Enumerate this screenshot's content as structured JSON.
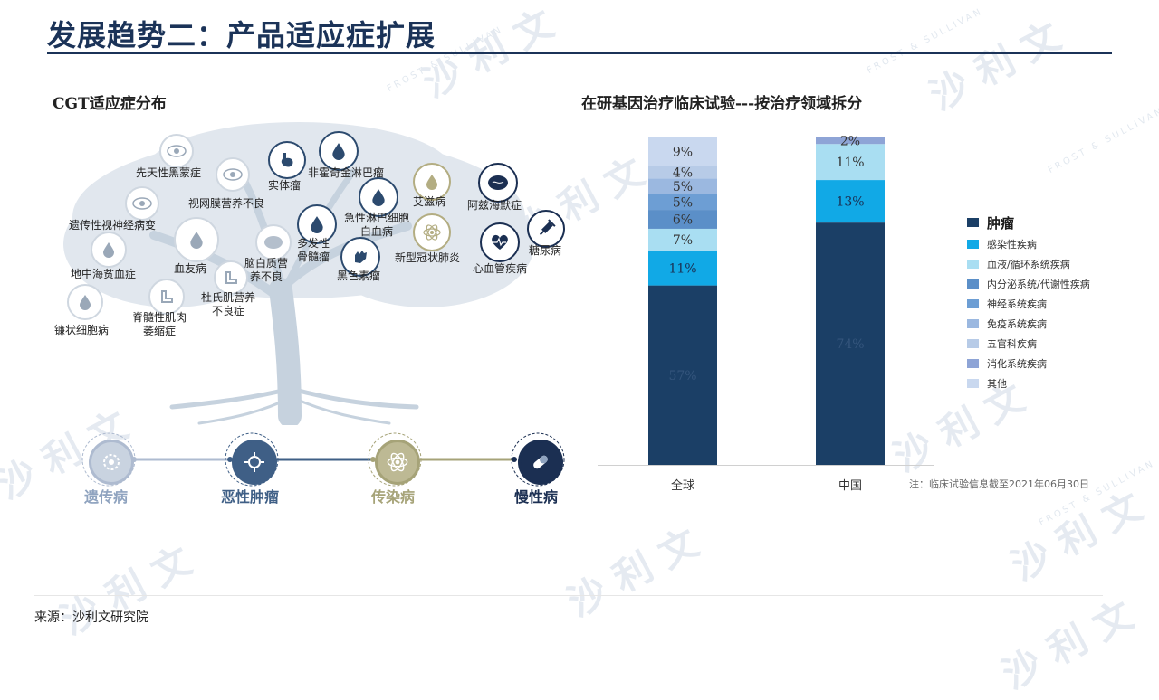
{
  "header": {
    "title": "发展趋势二：产品适应症扩展"
  },
  "left_panel": {
    "title": "CGT适应症分布",
    "diseases": [
      {
        "label": "先天性黑蒙症"
      },
      {
        "label": "视网膜营养不良"
      },
      {
        "label": "遗传性视神经病变"
      },
      {
        "label": "地中海贫血症"
      },
      {
        "label": "血友病"
      },
      {
        "label": "镰状细胞病"
      },
      {
        "label": "脊髓性肌肉\n萎缩症"
      },
      {
        "label": "杜氏肌营养\n不良症"
      },
      {
        "label": "脑白质营\n养不良"
      },
      {
        "label": "实体瘤"
      },
      {
        "label": "非霍奇金淋巴瘤"
      },
      {
        "label": "急性淋巴细胞\n白血病"
      },
      {
        "label": "多发性\n骨髓瘤"
      },
      {
        "label": "黑色素瘤"
      },
      {
        "label": "艾滋病"
      },
      {
        "label": "新型冠状肺炎"
      },
      {
        "label": "阿兹海默症"
      },
      {
        "label": "心血管疾病"
      },
      {
        "label": "糖尿病"
      }
    ],
    "categories": [
      {
        "label": "遗传病",
        "color": "#8fa3bf"
      },
      {
        "label": "恶性肿瘤",
        "color": "#3f5f86"
      },
      {
        "label": "传染病",
        "color": "#a6a378"
      },
      {
        "label": "慢性病",
        "color": "#1b2f52"
      }
    ]
  },
  "right_panel": {
    "title": "在研基因治疗临床试验---按治疗领域拆分",
    "note": "注：临床试验信息截至2021年06月30日"
  },
  "chart_data": {
    "type": "bar",
    "stacked": true,
    "categories": [
      "全球",
      "中国"
    ],
    "ylim": [
      0,
      100
    ],
    "legend_position": "right",
    "series": [
      {
        "name": "肿瘤",
        "color": "#1b3f66",
        "values": [
          57,
          74
        ],
        "labels": [
          "57%",
          "74%"
        ]
      },
      {
        "name": "感染性疾病",
        "color": "#11a9e6",
        "values": [
          11,
          13
        ],
        "labels": [
          "11%",
          "13%"
        ]
      },
      {
        "name": "血液/循环系统疾病",
        "color": "#a9def2",
        "values": [
          7,
          11
        ],
        "labels": [
          "7%",
          "11%"
        ]
      },
      {
        "name": "内分泌系统/代谢性疾病",
        "color": "#5b8fc8",
        "values": [
          6,
          0
        ],
        "labels": [
          "6%",
          ""
        ]
      },
      {
        "name": "神经系统疾病",
        "color": "#6d9ed4",
        "values": [
          5,
          0
        ],
        "labels": [
          "5%",
          ""
        ]
      },
      {
        "name": "免疫系统疾病",
        "color": "#9bb8e0",
        "values": [
          5,
          0
        ],
        "labels": [
          "5%",
          ""
        ]
      },
      {
        "name": "五官科疾病",
        "color": "#b7cbe7",
        "values": [
          4,
          0
        ],
        "labels": [
          "4%",
          ""
        ]
      },
      {
        "name": "消化系统疾病",
        "color": "#8ea4d6",
        "values": [
          0,
          2
        ],
        "labels": [
          "",
          "2%"
        ]
      },
      {
        "name": "其他",
        "color": "#c9d8ef",
        "values": [
          9,
          0
        ],
        "labels": [
          "9%",
          ""
        ]
      }
    ]
  },
  "footer": {
    "source": "来源：沙利文研究院"
  },
  "watermark": {
    "text": "沙 利 文",
    "small": "FROST & SULLIVAN"
  }
}
